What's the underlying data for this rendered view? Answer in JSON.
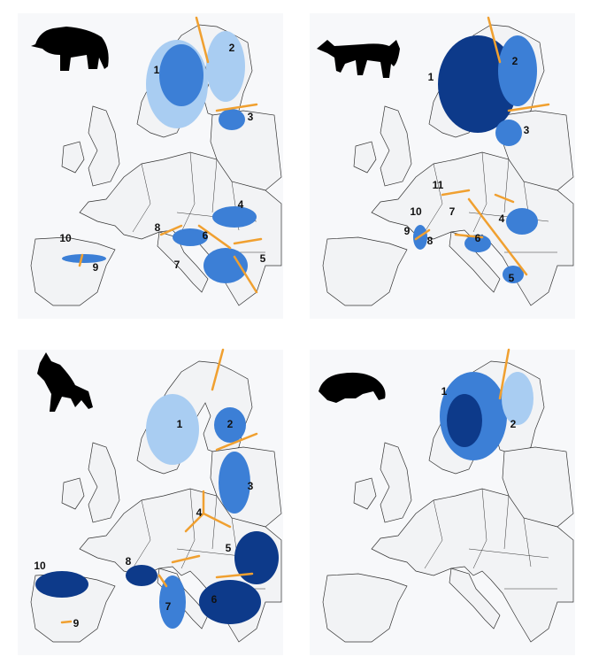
{
  "panels": [
    {
      "population_labels": [
        "1",
        "2",
        "3",
        "4",
        "5",
        "6",
        "7",
        "8",
        "9",
        "10"
      ]
    },
    {
      "population_labels": [
        "1",
        "2",
        "3",
        "4",
        "5",
        "6",
        "7",
        "8",
        "9",
        "10",
        "11"
      ]
    },
    {
      "population_labels": [
        "1",
        "2",
        "3",
        "4",
        "5",
        "6",
        "7",
        "8",
        "9",
        "10"
      ]
    },
    {
      "population_labels": [
        "1",
        "2"
      ]
    }
  ]
}
